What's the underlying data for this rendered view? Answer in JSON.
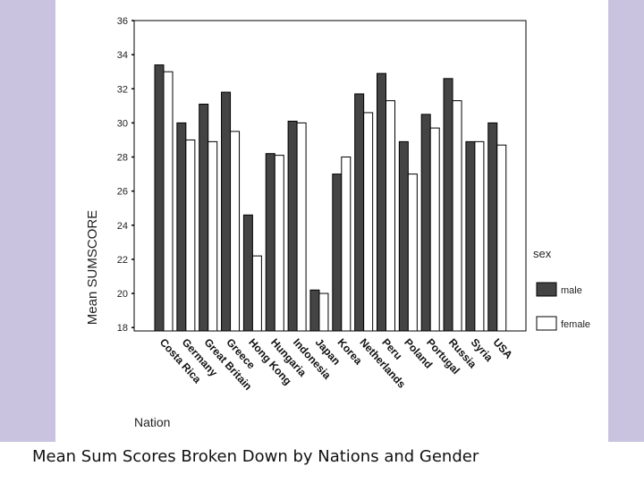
{
  "caption": "Mean Sum Scores Broken Down by Nations and Gender",
  "chart_data": {
    "type": "bar",
    "title": "",
    "xlabel": "Nation",
    "ylabel": "Mean SUMSCORE",
    "ylim": [
      17.8,
      36
    ],
    "yticks": [
      18,
      20,
      22,
      24,
      26,
      28,
      30,
      32,
      34,
      36
    ],
    "categories": [
      "Costa Rica",
      "Germany",
      "Great Britain",
      "Greece",
      "Hong Kong",
      "Hungaria",
      "Indonesia",
      "Japan",
      "Korea",
      "Netherlands",
      "Peru",
      "Poland",
      "Portugal",
      "Russia",
      "Syria",
      "USA"
    ],
    "series": [
      {
        "name": "male",
        "color": "#444444",
        "values": [
          33.4,
          30.0,
          31.1,
          31.8,
          24.6,
          28.2,
          30.1,
          20.2,
          27.0,
          31.7,
          32.9,
          28.9,
          30.5,
          32.6,
          28.9,
          30.0
        ]
      },
      {
        "name": "female",
        "color": "#ffffff",
        "values": [
          33.0,
          29.0,
          28.9,
          29.5,
          22.2,
          28.1,
          30.0,
          20.0,
          28.0,
          30.6,
          31.3,
          27.0,
          29.7,
          31.3,
          28.9,
          28.7
        ]
      }
    ],
    "legend": {
      "title": "sex",
      "position": "right"
    },
    "grid": false
  }
}
